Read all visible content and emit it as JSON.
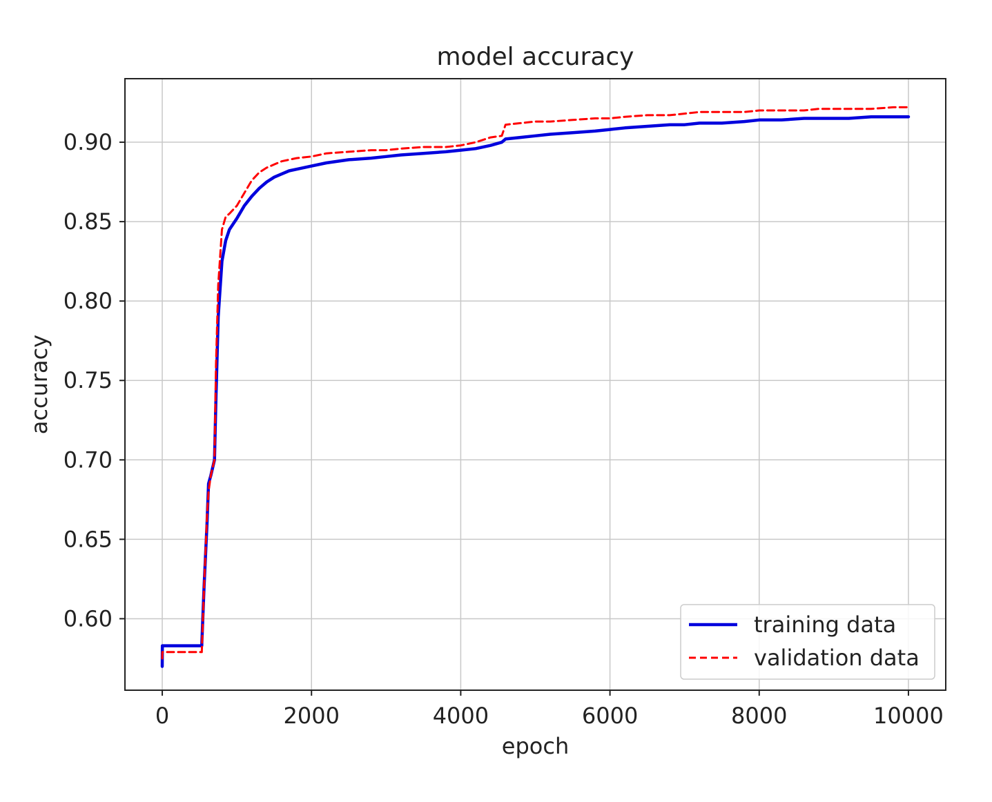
{
  "chart_data": {
    "type": "line",
    "title": "model accuracy",
    "xlabel": "epoch",
    "ylabel": "accuracy",
    "xlim": [
      -500,
      10500
    ],
    "ylim": [
      0.555,
      0.94
    ],
    "xticks": [
      0,
      2000,
      4000,
      6000,
      8000,
      10000
    ],
    "xtick_labels": [
      "0",
      "2000",
      "4000",
      "6000",
      "8000",
      "10000"
    ],
    "yticks": [
      0.6,
      0.65,
      0.7,
      0.75,
      0.8,
      0.85,
      0.9
    ],
    "ytick_labels": [
      "0.60",
      "0.65",
      "0.70",
      "0.75",
      "0.80",
      "0.85",
      "0.90"
    ],
    "grid": true,
    "legend_position": "lower-right",
    "series": [
      {
        "name": "training data",
        "color": "#0000dd",
        "style": "solid",
        "x": [
          0,
          1,
          10,
          530,
          531,
          560,
          600,
          620,
          650,
          700,
          720,
          750,
          800,
          850,
          900,
          1000,
          1100,
          1200,
          1300,
          1400,
          1500,
          1600,
          1700,
          1800,
          2000,
          2200,
          2500,
          2800,
          3000,
          3200,
          3500,
          3800,
          4000,
          4200,
          4400,
          4550,
          4600,
          4800,
          5000,
          5200,
          5500,
          5800,
          6000,
          6200,
          6500,
          6800,
          7000,
          7200,
          7500,
          7800,
          8000,
          8300,
          8600,
          8800,
          9000,
          9200,
          9500,
          9800,
          10000
        ],
        "y": [
          0.57,
          0.583,
          0.583,
          0.583,
          0.585,
          0.62,
          0.66,
          0.685,
          0.69,
          0.7,
          0.74,
          0.79,
          0.825,
          0.838,
          0.845,
          0.852,
          0.86,
          0.866,
          0.871,
          0.875,
          0.878,
          0.88,
          0.882,
          0.883,
          0.885,
          0.887,
          0.889,
          0.89,
          0.891,
          0.892,
          0.893,
          0.894,
          0.895,
          0.896,
          0.898,
          0.9,
          0.902,
          0.903,
          0.904,
          0.905,
          0.906,
          0.907,
          0.908,
          0.909,
          0.91,
          0.911,
          0.911,
          0.912,
          0.912,
          0.913,
          0.914,
          0.914,
          0.915,
          0.915,
          0.915,
          0.915,
          0.916,
          0.916,
          0.916
        ]
      },
      {
        "name": "validation data",
        "color": "#ff0000",
        "style": "dashed",
        "x": [
          0,
          1,
          10,
          530,
          531,
          560,
          600,
          620,
          650,
          700,
          720,
          750,
          800,
          850,
          900,
          1000,
          1100,
          1200,
          1300,
          1400,
          1500,
          1600,
          1700,
          1800,
          2000,
          2200,
          2500,
          2800,
          3000,
          3200,
          3500,
          3800,
          4000,
          4200,
          4400,
          4550,
          4600,
          4800,
          5000,
          5200,
          5500,
          5800,
          6000,
          6200,
          6500,
          6800,
          7000,
          7200,
          7500,
          7800,
          8000,
          8300,
          8600,
          8800,
          9000,
          9200,
          9500,
          9800,
          10000
        ],
        "y": [
          0.575,
          0.579,
          0.579,
          0.579,
          0.58,
          0.62,
          0.665,
          0.68,
          0.69,
          0.7,
          0.76,
          0.81,
          0.845,
          0.853,
          0.855,
          0.86,
          0.868,
          0.876,
          0.881,
          0.884,
          0.886,
          0.888,
          0.889,
          0.89,
          0.891,
          0.893,
          0.894,
          0.895,
          0.895,
          0.896,
          0.897,
          0.897,
          0.898,
          0.9,
          0.903,
          0.904,
          0.911,
          0.912,
          0.913,
          0.913,
          0.914,
          0.915,
          0.915,
          0.916,
          0.917,
          0.917,
          0.918,
          0.919,
          0.919,
          0.919,
          0.92,
          0.92,
          0.92,
          0.921,
          0.921,
          0.921,
          0.921,
          0.922,
          0.922
        ]
      }
    ]
  }
}
